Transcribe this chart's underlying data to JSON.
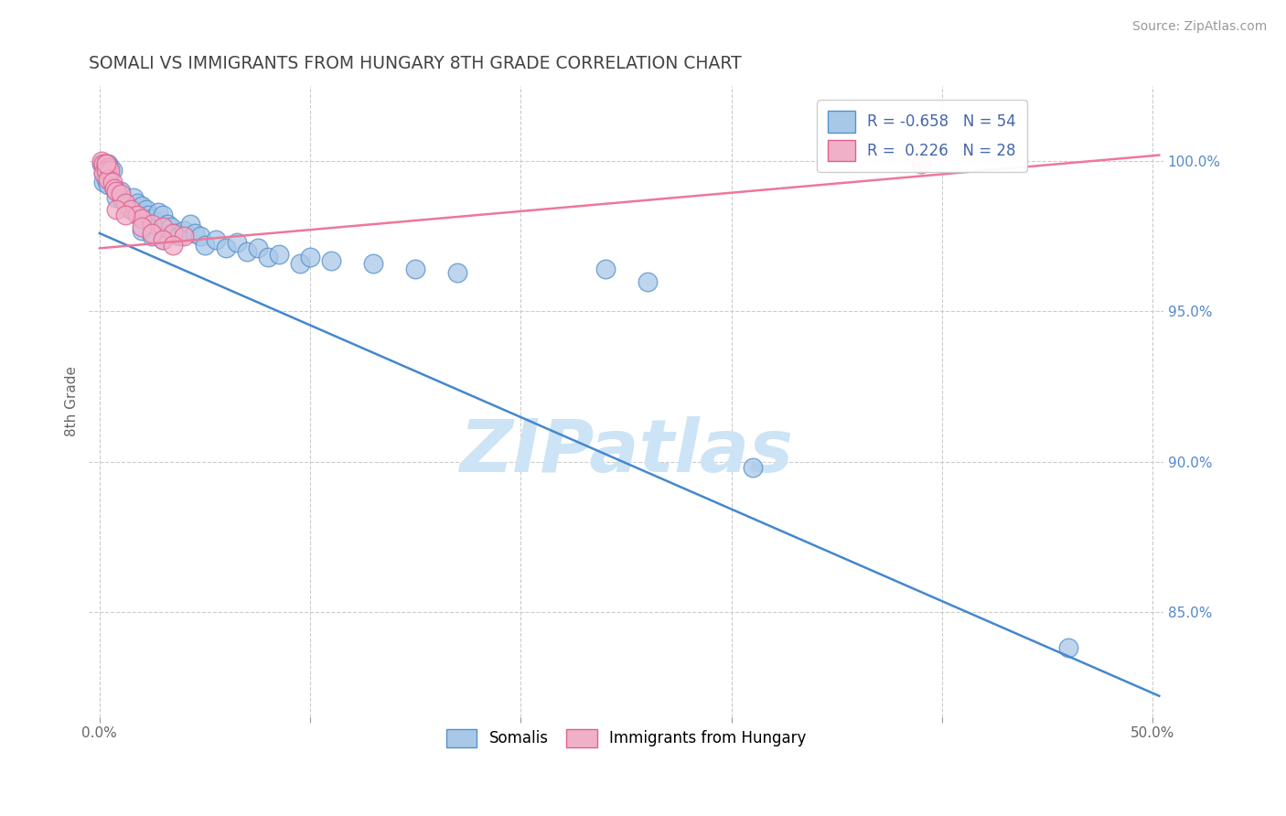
{
  "title": "SOMALI VS IMMIGRANTS FROM HUNGARY 8TH GRADE CORRELATION CHART",
  "source": "Source: ZipAtlas.com",
  "ylabel_label": "8th Grade",
  "xlim": [
    -0.005,
    0.505
  ],
  "ylim": [
    0.815,
    1.025
  ],
  "background_color": "#ffffff",
  "grid_color": "#cccccc",
  "title_color": "#444444",
  "title_fontsize": 13.5,
  "R_somali": -0.658,
  "N_somali": 54,
  "R_hungary": 0.226,
  "N_hungary": 28,
  "somali_color": "#a8c8e8",
  "hungary_color": "#f0b0c8",
  "somali_edge_color": "#5590cc",
  "hungary_edge_color": "#e06090",
  "somali_line_color": "#4488cc",
  "hungary_line_color": "#ee7799",
  "watermark_text": "ZIPatlas",
  "watermark_color": "#cce4f5",
  "somali_line_x": [
    0.0,
    0.503
  ],
  "somali_line_y": [
    0.976,
    0.822
  ],
  "hungary_line_x": [
    0.0,
    0.503
  ],
  "hungary_line_y": [
    0.971,
    1.002
  ],
  "right_ytick_positions": [
    0.85,
    0.9,
    0.95,
    1.0
  ],
  "right_ytick_labels": [
    "85.0%",
    "90.0%",
    "95.0%",
    "100.0%"
  ],
  "x_tick_positions": [
    0.0,
    0.1,
    0.2,
    0.3,
    0.4,
    0.5
  ],
  "x_tick_labels": [
    "0.0%",
    "",
    "",
    "",
    "",
    "50.0%"
  ],
  "somali_dots": [
    [
      0.001,
      0.999
    ],
    [
      0.002,
      0.996
    ],
    [
      0.003,
      0.997
    ],
    [
      0.004,
      0.999
    ],
    [
      0.005,
      0.996
    ],
    [
      0.005,
      0.998
    ],
    [
      0.006,
      0.997
    ],
    [
      0.002,
      0.993
    ],
    [
      0.003,
      0.994
    ],
    [
      0.004,
      0.992
    ],
    [
      0.007,
      0.991
    ],
    [
      0.008,
      0.988
    ],
    [
      0.01,
      0.99
    ],
    [
      0.011,
      0.987
    ],
    [
      0.013,
      0.985
    ],
    [
      0.015,
      0.984
    ],
    [
      0.016,
      0.988
    ],
    [
      0.018,
      0.986
    ],
    [
      0.02,
      0.985
    ],
    [
      0.022,
      0.984
    ],
    [
      0.023,
      0.982
    ],
    [
      0.025,
      0.981
    ],
    [
      0.027,
      0.98
    ],
    [
      0.028,
      0.983
    ],
    [
      0.03,
      0.982
    ],
    [
      0.032,
      0.979
    ],
    [
      0.034,
      0.978
    ],
    [
      0.036,
      0.976
    ],
    [
      0.038,
      0.975
    ],
    [
      0.04,
      0.977
    ],
    [
      0.043,
      0.979
    ],
    [
      0.045,
      0.976
    ],
    [
      0.048,
      0.975
    ],
    [
      0.05,
      0.972
    ],
    [
      0.055,
      0.974
    ],
    [
      0.06,
      0.971
    ],
    [
      0.065,
      0.973
    ],
    [
      0.07,
      0.97
    ],
    [
      0.075,
      0.971
    ],
    [
      0.08,
      0.968
    ],
    [
      0.085,
      0.969
    ],
    [
      0.095,
      0.966
    ],
    [
      0.1,
      0.968
    ],
    [
      0.11,
      0.967
    ],
    [
      0.13,
      0.966
    ],
    [
      0.15,
      0.964
    ],
    [
      0.17,
      0.963
    ],
    [
      0.02,
      0.977
    ],
    [
      0.025,
      0.975
    ],
    [
      0.03,
      0.974
    ],
    [
      0.24,
      0.964
    ],
    [
      0.26,
      0.96
    ],
    [
      0.31,
      0.898
    ],
    [
      0.46,
      0.838
    ]
  ],
  "hungary_dots": [
    [
      0.001,
      1.0
    ],
    [
      0.002,
      0.999
    ],
    [
      0.003,
      0.999
    ],
    [
      0.004,
      0.998
    ],
    [
      0.002,
      0.996
    ],
    [
      0.003,
      0.997
    ],
    [
      0.005,
      0.997
    ],
    [
      0.004,
      0.994
    ],
    [
      0.006,
      0.993
    ],
    [
      0.007,
      0.991
    ],
    [
      0.008,
      0.99
    ],
    [
      0.01,
      0.989
    ],
    [
      0.012,
      0.986
    ],
    [
      0.015,
      0.984
    ],
    [
      0.018,
      0.982
    ],
    [
      0.02,
      0.981
    ],
    [
      0.025,
      0.979
    ],
    [
      0.03,
      0.978
    ],
    [
      0.035,
      0.976
    ],
    [
      0.04,
      0.975
    ],
    [
      0.008,
      0.984
    ],
    [
      0.012,
      0.982
    ],
    [
      0.02,
      0.978
    ],
    [
      0.025,
      0.976
    ],
    [
      0.03,
      0.974
    ],
    [
      0.035,
      0.972
    ],
    [
      0.39,
      0.999
    ],
    [
      0.003,
      0.999
    ]
  ]
}
